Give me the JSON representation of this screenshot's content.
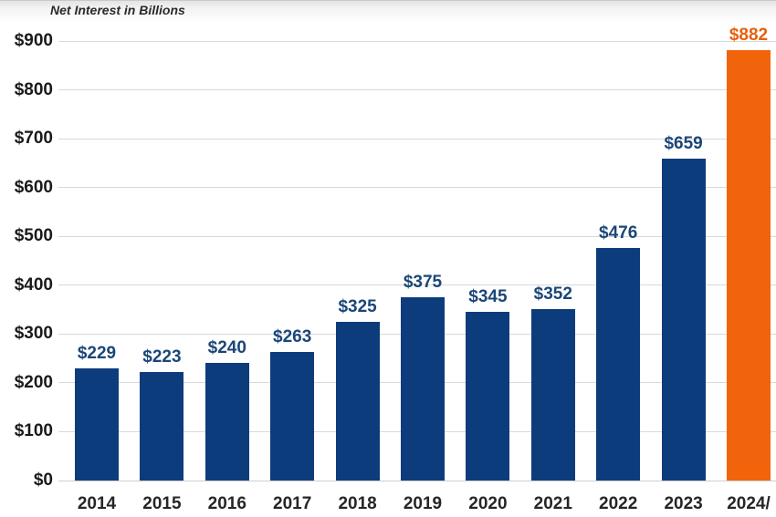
{
  "chart_data": {
    "type": "bar",
    "title": "Net Interest in Billions",
    "categories": [
      "2014",
      "2015",
      "2016",
      "2017",
      "2018",
      "2019",
      "2020",
      "2021",
      "2022",
      "2023",
      "2024/"
    ],
    "values": [
      229,
      223,
      240,
      263,
      325,
      375,
      345,
      352,
      476,
      659,
      882
    ],
    "value_labels": [
      "$229",
      "$223",
      "$240",
      "$263",
      "$325",
      "$375",
      "$345",
      "$352",
      "$476",
      "$659",
      "$882"
    ],
    "highlight_index": 10,
    "ylim": [
      0,
      900
    ],
    "ytick_step": 100,
    "ytick_labels": [
      "$0",
      "$100",
      "$200",
      "$300",
      "$400",
      "$500",
      "$600",
      "$700",
      "$800",
      "$900"
    ],
    "grid": "horizontal",
    "legend": "none",
    "colors": {
      "bar_primary": "#0d3c7c",
      "bar_highlight": "#f2640c",
      "value_label_primary": "#1b4677",
      "value_label_highlight": "#e8600e",
      "gridline": "#d9d9d9",
      "x_tick_text": "#262626",
      "y_tick_text": "#1a1a1a"
    }
  }
}
